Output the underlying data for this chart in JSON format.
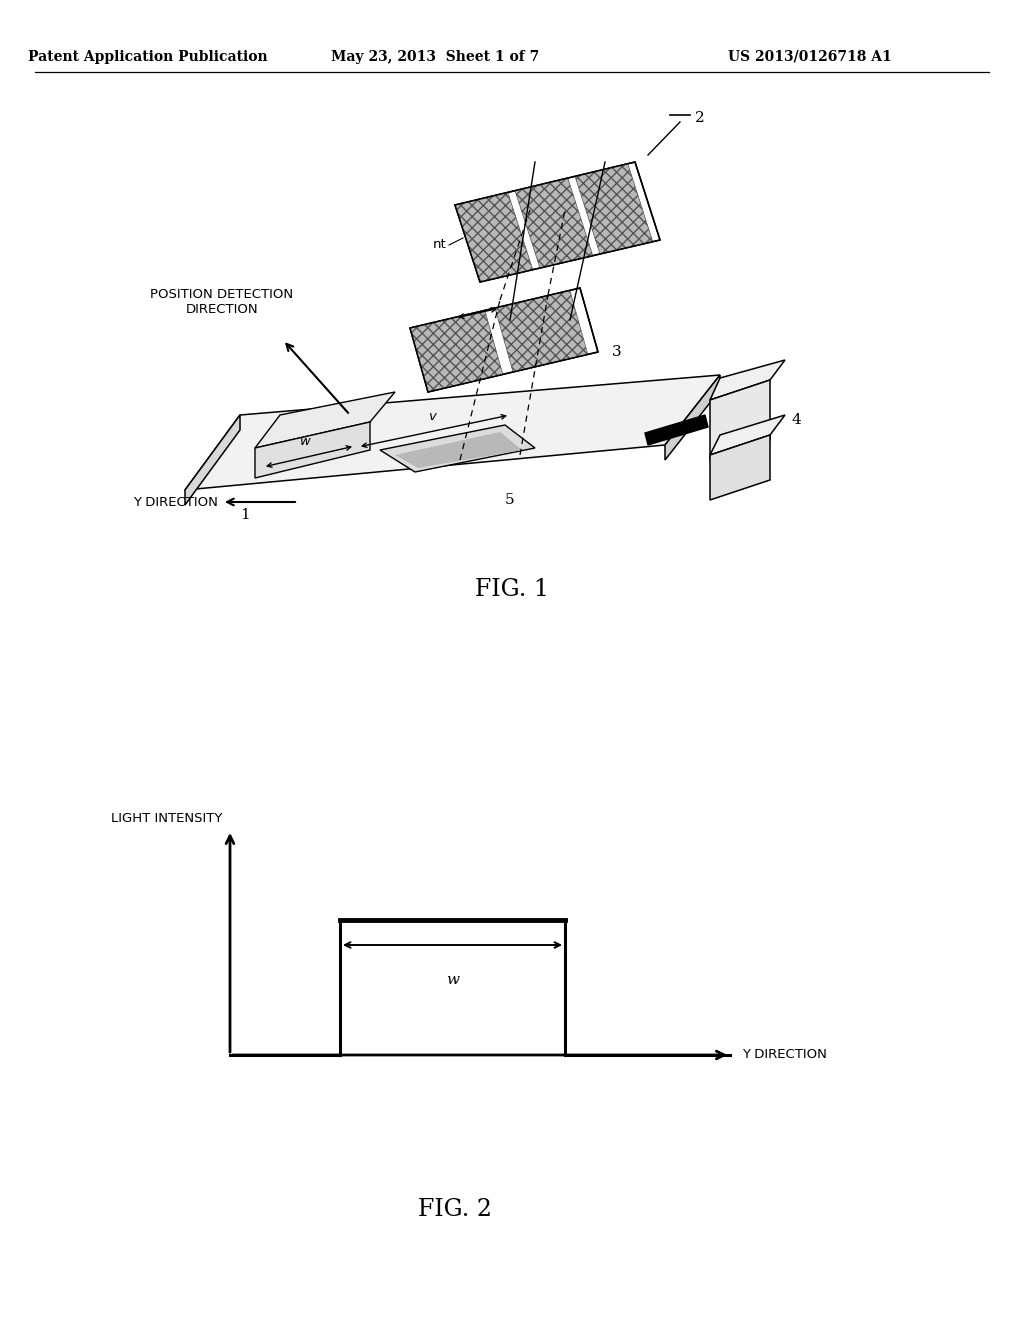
{
  "background_color": "#ffffff",
  "header_left": "Patent Application Publication",
  "header_center": "May 23, 2013  Sheet 1 of 7",
  "header_right": "US 2013/0126718 A1",
  "fig1_caption": "FIG. 1",
  "fig2_caption": "FIG. 2",
  "fig2_ylabel": "LIGHT INTENSITY",
  "fig2_xlabel": "Y DIRECTION",
  "fig2_w_label": "w",
  "pos_detection_label": "POSITION DETECTION\nDIRECTION",
  "y_direction_label": "Y DIRECTION",
  "label_nt": "nt",
  "label_1": "1",
  "label_2": "2",
  "label_3": "3",
  "label_4": "4",
  "label_5": "5",
  "label_w": "w",
  "label_v": "v"
}
